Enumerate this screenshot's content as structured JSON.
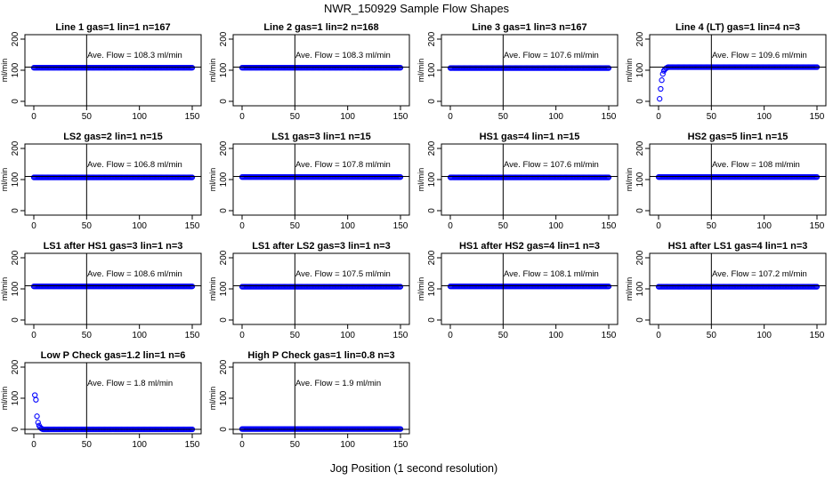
{
  "figure": {
    "title": "NWR_150929  Sample Flow Shapes",
    "xlabel": "Jog Position (1 second resolution)"
  },
  "colors": {
    "points": "#0000ff",
    "axis": "#000000",
    "background": "#ffffff"
  },
  "chart_data": [
    {
      "type": "scatter",
      "title": "Line 1 gas=1 lin=1 n=167",
      "ylabel": "ml/min",
      "annotation": "Ave. Flow =  108.3  ml/min",
      "xlim": [
        0,
        150
      ],
      "ylim": [
        0,
        200
      ],
      "xticks": [
        0,
        50,
        100,
        150
      ],
      "yticks": [
        0,
        100,
        200
      ],
      "vline": 50,
      "hline": 110,
      "shape": "flat",
      "level": 108
    },
    {
      "type": "scatter",
      "title": "Line 2 gas=1 lin=2 n=168",
      "ylabel": "ml/min",
      "annotation": "Ave. Flow =  108.3  ml/min",
      "xlim": [
        0,
        150
      ],
      "ylim": [
        0,
        200
      ],
      "xticks": [
        0,
        50,
        100,
        150
      ],
      "yticks": [
        0,
        100,
        200
      ],
      "vline": 50,
      "hline": 110,
      "shape": "flat",
      "level": 108
    },
    {
      "type": "scatter",
      "title": "Line 3 gas=1 lin=3 n=167",
      "ylabel": "ml/min",
      "annotation": "Ave. Flow =  107.6  ml/min",
      "xlim": [
        0,
        150
      ],
      "ylim": [
        0,
        200
      ],
      "xticks": [
        0,
        50,
        100,
        150
      ],
      "yticks": [
        0,
        100,
        200
      ],
      "vline": 50,
      "hline": 110,
      "shape": "flat",
      "level": 107
    },
    {
      "type": "scatter",
      "title": "Line 4 (LT) gas=1 lin=4 n=3",
      "ylabel": "ml/min",
      "annotation": "Ave. Flow =  109.6  ml/min",
      "xlim": [
        0,
        150
      ],
      "ylim": [
        0,
        200
      ],
      "xticks": [
        0,
        50,
        100,
        150
      ],
      "yticks": [
        0,
        100,
        200
      ],
      "vline": 50,
      "hline": 110,
      "shape": "rise",
      "level": 110,
      "lead_points": [
        [
          1,
          8
        ],
        [
          2,
          40
        ],
        [
          3,
          68
        ],
        [
          4,
          88
        ],
        [
          5,
          98
        ],
        [
          6,
          103
        ],
        [
          7,
          106
        ],
        [
          8,
          108
        ]
      ]
    },
    {
      "type": "scatter",
      "title": "LS2 gas=2 lin=1 n=15",
      "ylabel": "ml/min",
      "annotation": "Ave. Flow =  106.8  ml/min",
      "xlim": [
        0,
        150
      ],
      "ylim": [
        0,
        200
      ],
      "xticks": [
        0,
        50,
        100,
        150
      ],
      "yticks": [
        0,
        100,
        200
      ],
      "vline": 50,
      "hline": 110,
      "shape": "flat",
      "level": 107
    },
    {
      "type": "scatter",
      "title": "LS1 gas=3 lin=1 n=15",
      "ylabel": "ml/min",
      "annotation": "Ave. Flow =  107.8  ml/min",
      "xlim": [
        0,
        150
      ],
      "ylim": [
        0,
        200
      ],
      "xticks": [
        0,
        50,
        100,
        150
      ],
      "yticks": [
        0,
        100,
        200
      ],
      "vline": 50,
      "hline": 110,
      "shape": "flat",
      "level": 108
    },
    {
      "type": "scatter",
      "title": "HS1 gas=4 lin=1 n=15",
      "ylabel": "ml/min",
      "annotation": "Ave. Flow =  107.6  ml/min",
      "xlim": [
        0,
        150
      ],
      "ylim": [
        0,
        200
      ],
      "xticks": [
        0,
        50,
        100,
        150
      ],
      "yticks": [
        0,
        100,
        200
      ],
      "vline": 50,
      "hline": 110,
      "shape": "flat",
      "level": 107
    },
    {
      "type": "scatter",
      "title": "HS2 gas=5 lin=1 n=15",
      "ylabel": "ml/min",
      "annotation": "Ave. Flow =  108  ml/min",
      "xlim": [
        0,
        150
      ],
      "ylim": [
        0,
        200
      ],
      "xticks": [
        0,
        50,
        100,
        150
      ],
      "yticks": [
        0,
        100,
        200
      ],
      "vline": 50,
      "hline": 110,
      "shape": "flat",
      "level": 108
    },
    {
      "type": "scatter",
      "title": "LS1 after HS1 gas=3 lin=1 n=3",
      "ylabel": "ml/min",
      "annotation": "Ave. Flow =  108.6  ml/min",
      "xlim": [
        0,
        150
      ],
      "ylim": [
        0,
        200
      ],
      "xticks": [
        0,
        50,
        100,
        150
      ],
      "yticks": [
        0,
        100,
        200
      ],
      "vline": 50,
      "hline": 110,
      "shape": "flat",
      "level": 108
    },
    {
      "type": "scatter",
      "title": "LS1 after LS2 gas=3 lin=1 n=3",
      "ylabel": "ml/min",
      "annotation": "Ave. Flow =  107.5  ml/min",
      "xlim": [
        0,
        150
      ],
      "ylim": [
        0,
        200
      ],
      "xticks": [
        0,
        50,
        100,
        150
      ],
      "yticks": [
        0,
        100,
        200
      ],
      "vline": 50,
      "hline": 110,
      "shape": "flat",
      "level": 107
    },
    {
      "type": "scatter",
      "title": "HS1 after HS2 gas=4 lin=1 n=3",
      "ylabel": "ml/min",
      "annotation": "Ave. Flow =  108.1  ml/min",
      "xlim": [
        0,
        150
      ],
      "ylim": [
        0,
        200
      ],
      "xticks": [
        0,
        50,
        100,
        150
      ],
      "yticks": [
        0,
        100,
        200
      ],
      "vline": 50,
      "hline": 110,
      "shape": "flat",
      "level": 108
    },
    {
      "type": "scatter",
      "title": "HS1 after LS1 gas=4 lin=1 n=3",
      "ylabel": "ml/min",
      "annotation": "Ave. Flow =  107.2  ml/min",
      "xlim": [
        0,
        150
      ],
      "ylim": [
        0,
        200
      ],
      "xticks": [
        0,
        50,
        100,
        150
      ],
      "yticks": [
        0,
        100,
        200
      ],
      "vline": 50,
      "hline": 110,
      "shape": "flat",
      "level": 107
    },
    {
      "type": "scatter",
      "title": "Low P Check gas=1.2 lin=1 n=6",
      "ylabel": "ml/min",
      "annotation": "Ave. Flow =  1.8  ml/min",
      "xlim": [
        0,
        150
      ],
      "ylim": [
        0,
        200
      ],
      "xticks": [
        0,
        50,
        100,
        150
      ],
      "yticks": [
        0,
        100,
        200
      ],
      "vline": 50,
      "hline": 0,
      "shape": "decay",
      "level": 0,
      "lead_points": [
        [
          1,
          110
        ],
        [
          2,
          95
        ],
        [
          3,
          42
        ],
        [
          4,
          22
        ],
        [
          5,
          12
        ],
        [
          6,
          6
        ],
        [
          7,
          3
        ],
        [
          8,
          1
        ]
      ]
    },
    {
      "type": "scatter",
      "title": "High P Check gas=1 lin=0.8 n=3",
      "ylabel": "ml/min",
      "annotation": "Ave. Flow =  1.9  ml/min",
      "xlim": [
        0,
        150
      ],
      "ylim": [
        0,
        200
      ],
      "xticks": [
        0,
        50,
        100,
        150
      ],
      "yticks": [
        0,
        100,
        200
      ],
      "vline": 50,
      "hline": 0,
      "shape": "flat",
      "level": 1
    }
  ]
}
